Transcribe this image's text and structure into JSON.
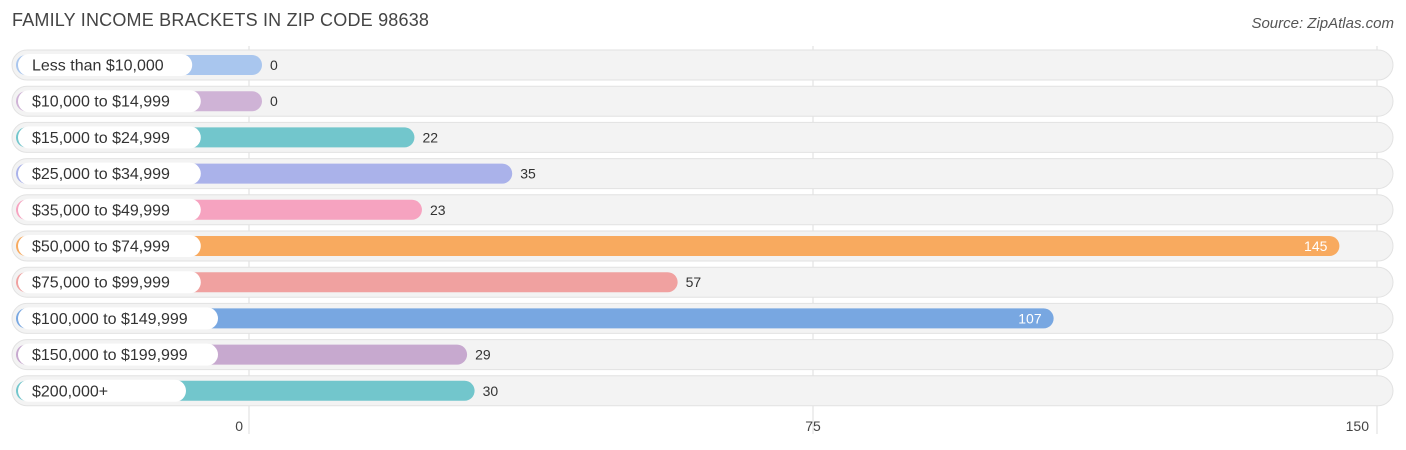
{
  "title": "FAMILY INCOME BRACKETS IN ZIP CODE 98638",
  "source": "Source: ZipAtlas.com",
  "colors": [
    "#a9c6ee",
    "#cfb3d6",
    "#72c6cc",
    "#aab2ea",
    "#f6a3c0",
    "#f8aa5f",
    "#f0a1a0",
    "#78a7e1",
    "#c7a9cf",
    "#72c6cc"
  ],
  "chart_data": {
    "type": "bar",
    "orientation": "horizontal",
    "categories": [
      "Less than $10,000",
      "$10,000 to $14,999",
      "$15,000 to $24,999",
      "$25,000 to $34,999",
      "$35,000 to $49,999",
      "$50,000 to $74,999",
      "$75,000 to $99,999",
      "$100,000 to $149,999",
      "$150,000 to $199,999",
      "$200,000+"
    ],
    "values": [
      0,
      0,
      22,
      35,
      23,
      145,
      57,
      107,
      29,
      30
    ],
    "xlim": [
      0,
      150
    ],
    "xticks": [
      0,
      75,
      150
    ],
    "grid": true,
    "title": "FAMILY INCOME BRACKETS IN ZIP CODE 98638"
  }
}
